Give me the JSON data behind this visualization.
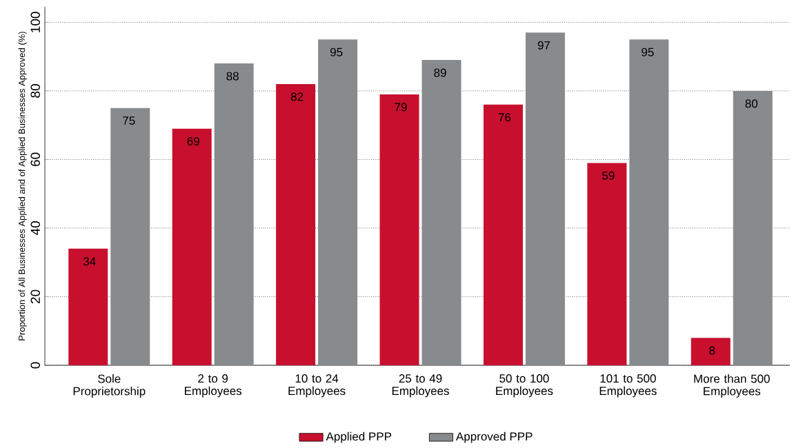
{
  "chart_data": {
    "type": "bar",
    "ylabel": "Proportion of All Businesses Applied and of Applied Businesses Approved (%)",
    "categories": [
      "Sole Proprietorship",
      "2 to 9 Employees",
      "10 to 24 Employees",
      "25 to 49 Employees",
      "50 to 100 Employees",
      "101 to 500 Employees",
      "More than 500 Employees"
    ],
    "series": [
      {
        "name": "Applied PPP",
        "color": "#c8102e",
        "values": [
          34,
          69,
          82,
          79,
          76,
          59,
          8
        ]
      },
      {
        "name": "Approved PPP",
        "color": "#888b8d",
        "values": [
          75,
          88,
          95,
          89,
          97,
          95,
          80
        ]
      }
    ],
    "ylim": [
      0,
      104.5
    ],
    "yticks": [
      0,
      20,
      40,
      60,
      80,
      100
    ],
    "grid": "y",
    "legend": "bottom",
    "data_labels": true
  }
}
